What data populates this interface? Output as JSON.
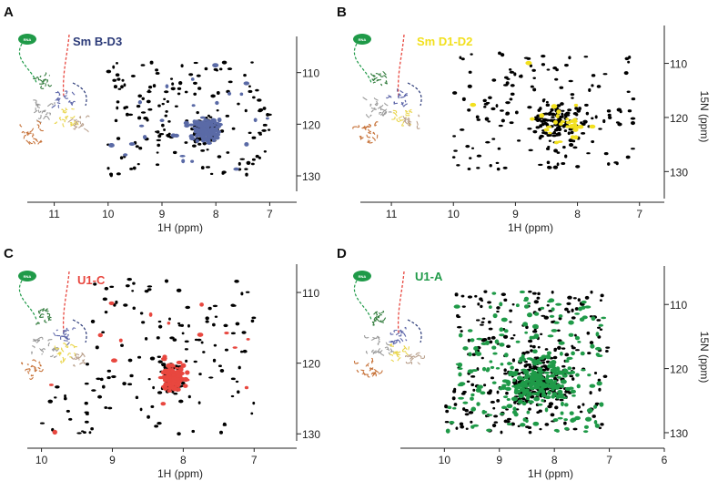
{
  "colors": {
    "sm_bd3": "#5a6aa6",
    "sm_bd3_title": "#2b3a78",
    "sm_d1d2": "#f2e01e",
    "u1c": "#e8473f",
    "u1a": "#1f9a48",
    "reference": "#000000"
  },
  "chart_data": [
    {
      "type": "scatter",
      "panel": "A",
      "title": "Sm B-D3",
      "xlabel": "1H (ppm)",
      "ylabel": "",
      "xlim": [
        11.5,
        6.5
      ],
      "ylim": [
        103,
        133
      ],
      "xticks": [
        11,
        10,
        9,
        8,
        7
      ],
      "yticks": [
        110,
        120,
        130
      ],
      "overlay_color_key": "sm_bd3",
      "inset": {
        "rna_label": "RNA"
      }
    },
    {
      "type": "scatter",
      "panel": "B",
      "title": "Sm D1-D2",
      "xlabel": "1H (ppm)",
      "ylabel": "15N (ppm)",
      "xlim": [
        11.5,
        6.6
      ],
      "ylim": [
        103,
        135
      ],
      "xticks": [
        11,
        10,
        9,
        8,
        7
      ],
      "yticks": [
        110,
        120,
        130
      ],
      "overlay_color_key": "sm_d1d2",
      "inset": {
        "rna_label": "RNA"
      }
    },
    {
      "type": "scatter",
      "panel": "C",
      "title": "U1-C",
      "xlabel": "1H (ppm)",
      "ylabel": "",
      "xlim": [
        10.2,
        6.4
      ],
      "ylim": [
        106,
        131
      ],
      "xticks": [
        10,
        9,
        8,
        7
      ],
      "yticks": [
        110,
        120,
        130
      ],
      "overlay_color_key": "u1c",
      "inset": {
        "rna_label": "RNA"
      }
    },
    {
      "type": "scatter",
      "panel": "D",
      "title": "U1-A",
      "xlabel": "1H (ppm)",
      "ylabel": "15N (ppm)",
      "xlim": [
        10.8,
        6.0
      ],
      "ylim": [
        104,
        131
      ],
      "xticks": [
        10,
        9,
        8,
        7,
        6
      ],
      "yticks": [
        110,
        120,
        130
      ],
      "overlay_color_key": "u1a",
      "inset": {
        "rna_label": "RNA"
      }
    }
  ],
  "panels": {
    "a": {
      "label": "A",
      "title": "Sm B-D3",
      "xlabel": "1H (ppm)",
      "ylabel": ""
    },
    "b": {
      "label": "B",
      "title": "Sm D1-D2",
      "xlabel": "1H (ppm)",
      "ylabel": "15N (ppm)"
    },
    "c": {
      "label": "C",
      "title": "U1-C",
      "xlabel": "1H (ppm)",
      "ylabel": ""
    },
    "d": {
      "label": "D",
      "title": "U1-A",
      "xlabel": "1H (ppm)",
      "ylabel": "15N (ppm)"
    }
  }
}
